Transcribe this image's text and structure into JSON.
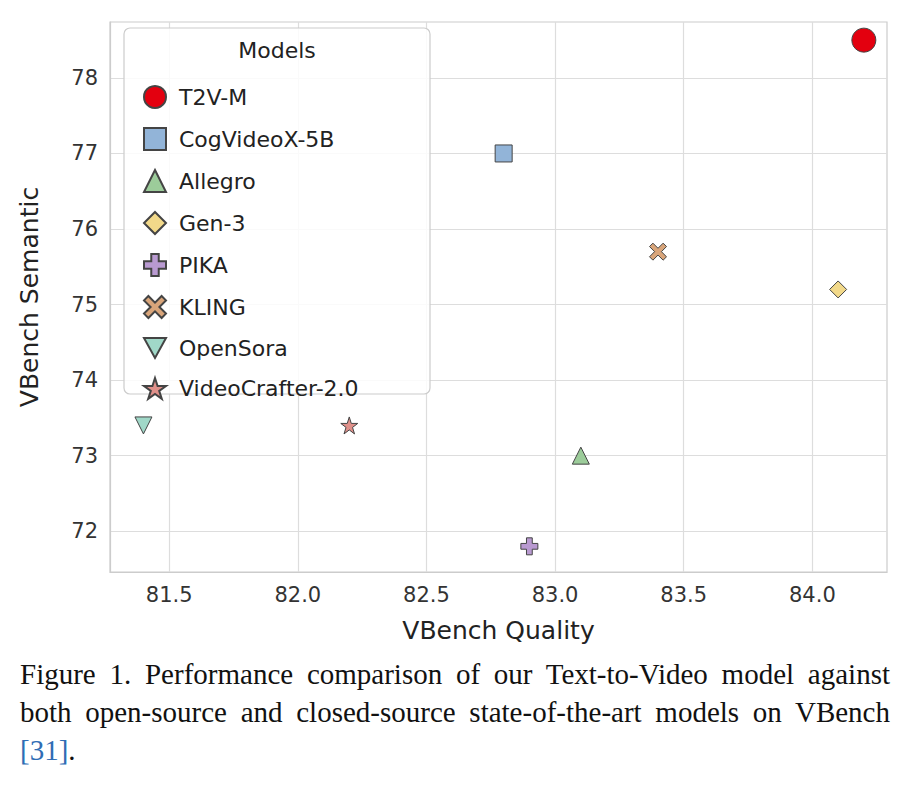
{
  "chart_data": {
    "type": "scatter",
    "x_label": "VBench Quality",
    "y_label": "VBench Semantic",
    "legend_title": "Models",
    "caption": "Figure 1.  Performance comparison of our Text-to-Video model against both open-source and closed-source state-of-the-art models on VBench [31].",
    "xlim": [
      81.27,
      84.29
    ],
    "xticks": [
      81.5,
      {
        "value": 82,
        "label": "82.0"
      },
      82.5,
      {
        "value": 83,
        "label": "83.0"
      },
      83.5,
      {
        "value": 84,
        "label": "84.0"
      }
    ],
    "ylim": [
      71.46,
      78.74
    ],
    "yticks": [
      72,
      73,
      74,
      75,
      76,
      77,
      78
    ],
    "grid": true,
    "legend": "upper left",
    "series": [
      {
        "name": "T2V-M",
        "color": "#e3000f",
        "marker": "circle",
        "x": [
          84.2
        ],
        "values": [
          78.5
        ]
      },
      {
        "name": "CogVideoX-5B",
        "color": "#92b4d8",
        "marker": "square",
        "x": [
          82.8
        ],
        "values": [
          77.0
        ]
      },
      {
        "name": "Allegro",
        "color": "#9ccc9a",
        "marker": "triangle",
        "x": [
          83.1
        ],
        "values": [
          73.0
        ]
      },
      {
        "name": "Gen-3",
        "color": "#f2d98a",
        "marker": "diamond",
        "x": [
          84.1
        ],
        "values": [
          75.2
        ]
      },
      {
        "name": "PIKA",
        "color": "#b99ad1",
        "marker": "plus",
        "x": [
          82.9
        ],
        "values": [
          71.8
        ]
      },
      {
        "name": "KLING",
        "color": "#d9a57a",
        "marker": "x",
        "x": [
          83.4
        ],
        "values": [
          75.7
        ]
      },
      {
        "name": "OpenSora",
        "color": "#a0d8c8",
        "marker": "triangle_down",
        "x": [
          81.4
        ],
        "values": [
          73.4
        ]
      },
      {
        "name": "VideoCrafter-2.0",
        "color": "#e0908a",
        "marker": "star",
        "x": [
          82.2
        ],
        "values": [
          73.4
        ]
      }
    ]
  }
}
